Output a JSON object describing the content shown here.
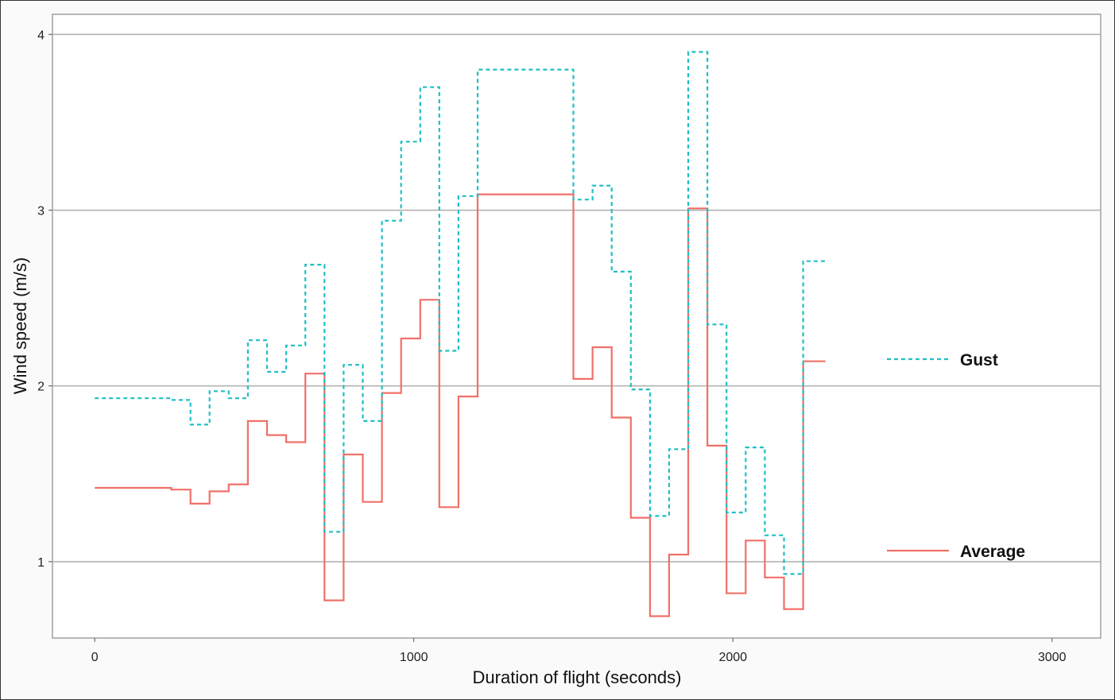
{
  "chart_data": {
    "type": "line",
    "step": true,
    "title": "",
    "xlabel": "Duration of flight (seconds)",
    "ylabel": "Wind speed (m/s)",
    "xlim": [
      -130,
      3150
    ],
    "ylim": [
      0.57,
      4.11
    ],
    "xticks": [
      0,
      1000,
      2000,
      3000
    ],
    "yticks": [
      1,
      2,
      3,
      4
    ],
    "grid": "horizontal-major",
    "legend": "right",
    "series": [
      {
        "name": "Gust",
        "color": "#1fbfc4",
        "dash": "dashed",
        "points": [
          [
            0,
            1.93
          ],
          [
            240,
            1.92
          ],
          [
            300,
            1.78
          ],
          [
            360,
            1.97
          ],
          [
            420,
            1.93
          ],
          [
            480,
            2.26
          ],
          [
            540,
            2.08
          ],
          [
            600,
            2.23
          ],
          [
            660,
            2.69
          ],
          [
            720,
            1.17
          ],
          [
            780,
            2.12
          ],
          [
            840,
            1.8
          ],
          [
            900,
            2.94
          ],
          [
            960,
            3.39
          ],
          [
            1020,
            3.7
          ],
          [
            1080,
            2.2
          ],
          [
            1140,
            3.08
          ],
          [
            1200,
            3.8
          ],
          [
            1500,
            3.06
          ],
          [
            1560,
            3.14
          ],
          [
            1620,
            2.65
          ],
          [
            1680,
            1.98
          ],
          [
            1740,
            1.26
          ],
          [
            1800,
            1.64
          ],
          [
            1860,
            3.9
          ],
          [
            1920,
            2.35
          ],
          [
            1980,
            1.28
          ],
          [
            2040,
            1.65
          ],
          [
            2100,
            1.15
          ],
          [
            2160,
            0.93
          ],
          [
            2220,
            2.71
          ],
          [
            2290,
            2.71
          ]
        ]
      },
      {
        "name": "Average",
        "color": "#f07068",
        "dash": "solid",
        "points": [
          [
            0,
            1.42
          ],
          [
            240,
            1.41
          ],
          [
            300,
            1.33
          ],
          [
            360,
            1.4
          ],
          [
            420,
            1.44
          ],
          [
            480,
            1.8
          ],
          [
            540,
            1.72
          ],
          [
            600,
            1.68
          ],
          [
            660,
            2.07
          ],
          [
            720,
            0.78
          ],
          [
            780,
            1.61
          ],
          [
            840,
            1.34
          ],
          [
            900,
            1.96
          ],
          [
            960,
            2.27
          ],
          [
            1020,
            2.49
          ],
          [
            1080,
            1.31
          ],
          [
            1140,
            1.94
          ],
          [
            1200,
            3.09
          ],
          [
            1500,
            2.04
          ],
          [
            1560,
            2.22
          ],
          [
            1620,
            1.82
          ],
          [
            1680,
            1.25
          ],
          [
            1740,
            0.69
          ],
          [
            1800,
            1.04
          ],
          [
            1860,
            3.01
          ],
          [
            1920,
            1.66
          ],
          [
            1980,
            0.82
          ],
          [
            2040,
            1.12
          ],
          [
            2100,
            0.91
          ],
          [
            2160,
            0.73
          ],
          [
            2220,
            2.14
          ],
          [
            2290,
            2.14
          ]
        ]
      }
    ]
  }
}
